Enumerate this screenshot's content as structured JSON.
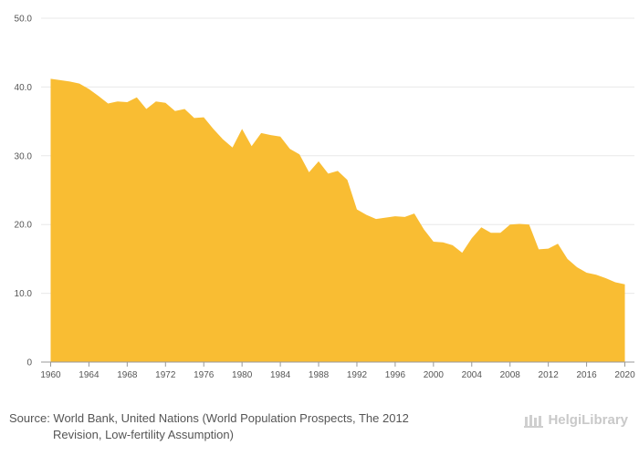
{
  "chart_data": {
    "type": "area",
    "x": [
      1960,
      1961,
      1962,
      1963,
      1964,
      1965,
      1966,
      1967,
      1968,
      1969,
      1970,
      1971,
      1972,
      1973,
      1974,
      1975,
      1976,
      1977,
      1978,
      1979,
      1980,
      1981,
      1982,
      1983,
      1984,
      1985,
      1986,
      1987,
      1988,
      1989,
      1990,
      1991,
      1992,
      1993,
      1994,
      1995,
      1996,
      1997,
      1998,
      1999,
      2000,
      2001,
      2002,
      2003,
      2004,
      2005,
      2006,
      2007,
      2008,
      2009,
      2010,
      2011,
      2012,
      2013,
      2014,
      2015,
      2016,
      2017,
      2018,
      2019,
      2020
    ],
    "values": [
      41.2,
      41.0,
      40.8,
      40.5,
      39.7,
      38.7,
      37.6,
      37.9,
      37.8,
      38.5,
      36.8,
      37.9,
      37.7,
      36.5,
      36.8,
      35.5,
      35.6,
      33.9,
      32.4,
      31.2,
      33.9,
      31.4,
      33.3,
      33.0,
      32.8,
      31.0,
      30.2,
      27.6,
      29.2,
      27.4,
      27.8,
      26.5,
      22.2,
      21.4,
      20.8,
      21.0,
      21.2,
      21.1,
      21.6,
      19.3,
      17.5,
      17.4,
      17.0,
      15.9,
      18.0,
      19.6,
      18.8,
      18.8,
      20.0,
      20.1,
      20.0,
      16.4,
      16.5,
      17.2,
      15.0,
      13.8,
      13.0,
      12.7,
      12.2,
      11.6,
      11.3
    ],
    "x_ticks": [
      "1960",
      "1964",
      "1968",
      "1972",
      "1976",
      "1980",
      "1984",
      "1988",
      "1992",
      "1996",
      "2000",
      "2004",
      "2008",
      "2012",
      "2016",
      "2020"
    ],
    "y_ticks": [
      "0",
      "10.0",
      "20.0",
      "30.0",
      "40.0",
      "50.0"
    ],
    "ylim": [
      0,
      50
    ],
    "xlim": [
      1959,
      2021
    ],
    "grid": true,
    "fill_color": "#f9bd33",
    "grid_color": "#e8e8e8",
    "axis_color": "#999999"
  },
  "footer": {
    "source_line1": "Source: World Bank, United Nations (World Population Prospects, The 2012",
    "source_line2": "Revision, Low-fertility Assumption)",
    "brand": "HelgiLibrary"
  }
}
